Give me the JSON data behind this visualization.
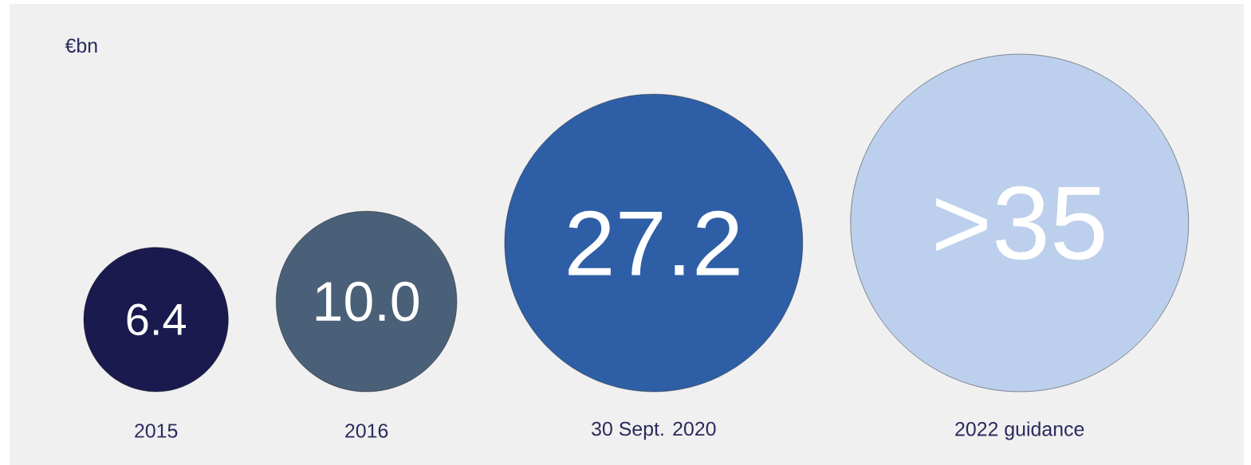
{
  "chart_data": {
    "type": "other",
    "ylabel": "€bn",
    "categories": [
      "2015",
      "2016",
      "30 Sept. 2020",
      "2022 guidance"
    ],
    "values": [
      6.4,
      10.0,
      27.2,
      35
    ],
    "value_labels": [
      "6.4",
      "10.0",
      "27.2",
      ">35"
    ],
    "colors": [
      "#1b1a4f",
      "#4a6078",
      "#2e5fa6",
      "#bccfec"
    ]
  }
}
